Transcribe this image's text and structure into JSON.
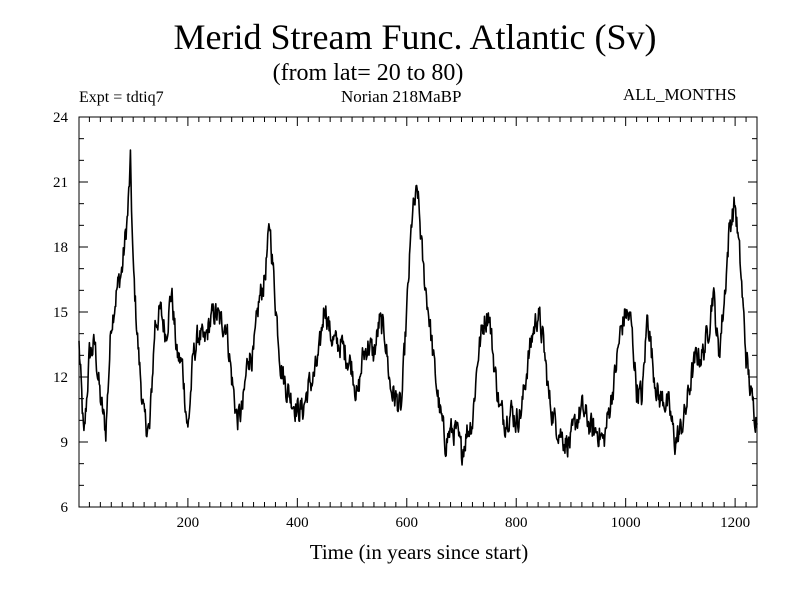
{
  "chart_data": {
    "type": "line",
    "title": "Merid Stream Func. Atlantic (Sv)",
    "subtitle": "(from lat= 20 to 80)",
    "experiment": "Expt = tdtiq7",
    "period": "Norian   218MaBP",
    "months": "ALL_MONTHS",
    "xlabel": "Time (in years since start)",
    "ylabel": "",
    "xlim": [
      1,
      1240
    ],
    "ylim": [
      6,
      24
    ],
    "x_ticks": [
      200,
      400,
      600,
      800,
      1000,
      1200
    ],
    "y_ticks": [
      6,
      9,
      12,
      15,
      18,
      21,
      24
    ],
    "series": [
      {
        "name": "Merid Stream Func. Atlantic",
        "color": "#000000",
        "x": [
          1,
          10,
          20,
          30,
          40,
          50,
          60,
          70,
          80,
          90,
          95,
          100,
          110,
          120,
          130,
          140,
          150,
          160,
          170,
          180,
          190,
          200,
          210,
          220,
          230,
          240,
          250,
          260,
          270,
          280,
          290,
          300,
          310,
          320,
          330,
          340,
          350,
          360,
          370,
          380,
          390,
          400,
          410,
          420,
          430,
          440,
          450,
          460,
          470,
          480,
          490,
          500,
          510,
          520,
          530,
          540,
          550,
          560,
          570,
          580,
          590,
          600,
          610,
          620,
          630,
          640,
          650,
          660,
          670,
          680,
          690,
          700,
          710,
          720,
          730,
          740,
          750,
          760,
          770,
          780,
          790,
          800,
          810,
          820,
          830,
          840,
          850,
          860,
          870,
          880,
          890,
          900,
          910,
          920,
          930,
          940,
          950,
          960,
          970,
          980,
          990,
          1000,
          1010,
          1020,
          1030,
          1040,
          1050,
          1060,
          1070,
          1080,
          1090,
          1100,
          1110,
          1120,
          1130,
          1140,
          1150,
          1160,
          1170,
          1180,
          1190,
          1200,
          1210,
          1220,
          1230,
          1240
        ],
        "values": [
          13.5,
          9.0,
          13.0,
          13.5,
          11.0,
          9.5,
          14.5,
          16.0,
          17.0,
          19.5,
          21.8,
          17.0,
          13.0,
          10.0,
          9.5,
          14.5,
          15.0,
          14.0,
          16.0,
          13.0,
          12.5,
          9.5,
          13.0,
          14.0,
          13.5,
          14.5,
          15.0,
          14.5,
          14.5,
          12.0,
          10.0,
          10.5,
          13.0,
          13.0,
          15.5,
          16.5,
          19.0,
          15.5,
          12.5,
          11.5,
          11.0,
          10.5,
          10.5,
          11.5,
          12.0,
          13.0,
          15.5,
          14.0,
          13.5,
          13.5,
          13.0,
          12.5,
          11.0,
          13.0,
          13.5,
          13.0,
          14.5,
          14.0,
          11.5,
          11.0,
          10.5,
          15.0,
          19.5,
          20.5,
          17.0,
          15.0,
          12.5,
          10.5,
          9.0,
          9.5,
          9.5,
          8.5,
          9.5,
          10.0,
          13.0,
          14.5,
          15.0,
          12.5,
          10.5,
          10.0,
          10.5,
          10.0,
          10.5,
          12.5,
          14.0,
          15.0,
          13.5,
          11.0,
          10.0,
          9.5,
          9.0,
          9.0,
          10.0,
          10.5,
          10.0,
          9.5,
          9.5,
          9.0,
          10.5,
          12.0,
          14.0,
          15.0,
          14.5,
          11.5,
          11.0,
          15.0,
          12.5,
          11.0,
          11.0,
          10.5,
          9.0,
          9.5,
          10.5,
          12.0,
          13.0,
          13.0,
          14.0,
          16.0,
          13.0,
          15.5,
          19.0,
          20.0,
          17.0,
          13.0,
          11.0,
          10.0
        ]
      }
    ]
  }
}
